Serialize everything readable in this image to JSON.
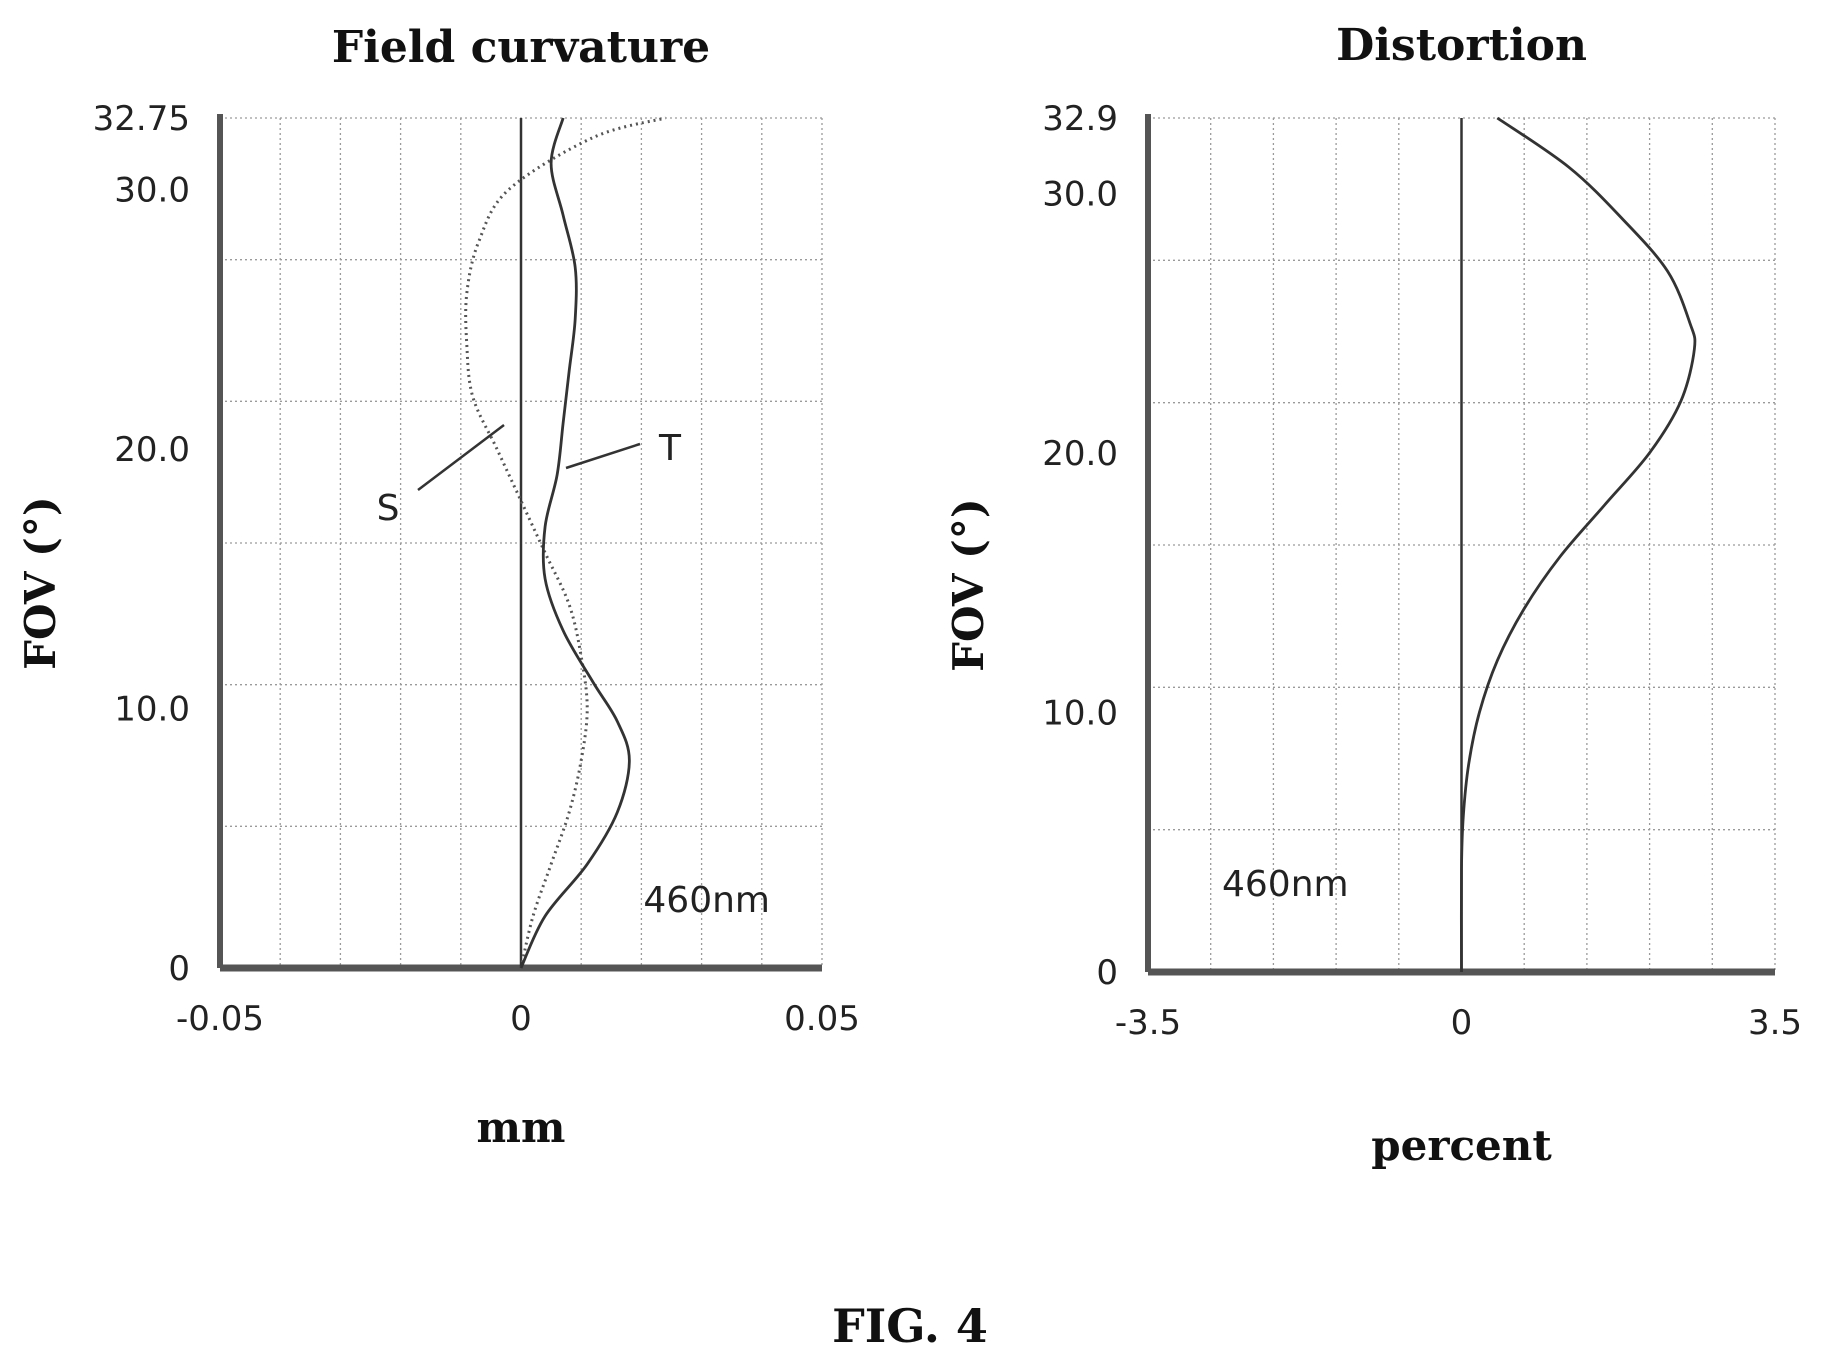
{
  "figure_caption": "FIG. 4",
  "chart_data": [
    {
      "type": "line",
      "title": "Field curvature",
      "xlabel": "mm",
      "ylabel": "FOV (°)",
      "xlim": [
        -0.05,
        0.05
      ],
      "ylim": [
        0,
        32.75
      ],
      "xticks": [
        "-0.05",
        "0",
        "0.05"
      ],
      "yticks": [
        {
          "value": 0,
          "label": "0"
        },
        {
          "value": 10,
          "label": "10.0"
        },
        {
          "value": 20,
          "label": "20.0"
        },
        {
          "value": 30,
          "label": "30.0"
        },
        {
          "value": 32.75,
          "label": "32.75"
        }
      ],
      "grid": true,
      "annotation": "460nm",
      "series": [
        {
          "name": "S",
          "style": "dotted",
          "points": [
            {
              "x": 0.0,
              "y": 0
            },
            {
              "x": 0.002,
              "y": 2
            },
            {
              "x": 0.005,
              "y": 4
            },
            {
              "x": 0.008,
              "y": 6
            },
            {
              "x": 0.01,
              "y": 8
            },
            {
              "x": 0.011,
              "y": 10
            },
            {
              "x": 0.01,
              "y": 12
            },
            {
              "x": 0.008,
              "y": 14
            },
            {
              "x": 0.004,
              "y": 16
            },
            {
              "x": 0.0,
              "y": 18
            },
            {
              "x": -0.004,
              "y": 20
            },
            {
              "x": -0.008,
              "y": 22
            },
            {
              "x": -0.009,
              "y": 24
            },
            {
              "x": -0.009,
              "y": 26
            },
            {
              "x": -0.007,
              "y": 28
            },
            {
              "x": -0.002,
              "y": 30
            },
            {
              "x": 0.012,
              "y": 32
            },
            {
              "x": 0.024,
              "y": 32.75
            }
          ]
        },
        {
          "name": "T",
          "style": "solid",
          "points": [
            {
              "x": 0.0,
              "y": 0
            },
            {
              "x": 0.004,
              "y": 2
            },
            {
              "x": 0.011,
              "y": 4
            },
            {
              "x": 0.016,
              "y": 6
            },
            {
              "x": 0.018,
              "y": 8
            },
            {
              "x": 0.016,
              "y": 9.5
            },
            {
              "x": 0.012,
              "y": 11
            },
            {
              "x": 0.007,
              "y": 13
            },
            {
              "x": 0.004,
              "y": 15
            },
            {
              "x": 0.004,
              "y": 17
            },
            {
              "x": 0.006,
              "y": 19
            },
            {
              "x": 0.007,
              "y": 21
            },
            {
              "x": 0.008,
              "y": 23
            },
            {
              "x": 0.009,
              "y": 25
            },
            {
              "x": 0.009,
              "y": 27
            },
            {
              "x": 0.007,
              "y": 29
            },
            {
              "x": 0.005,
              "y": 31
            },
            {
              "x": 0.007,
              "y": 32.75
            }
          ]
        }
      ],
      "callouts": [
        {
          "label": "S",
          "series": "S"
        },
        {
          "label": "T",
          "series": "T"
        }
      ]
    },
    {
      "type": "line",
      "title": "Distortion",
      "xlabel": "percent",
      "ylabel": "FOV (°)",
      "xlim": [
        -3.5,
        3.5
      ],
      "ylim": [
        0,
        32.9
      ],
      "xticks": [
        "-3.5",
        "0",
        "3.5"
      ],
      "yticks": [
        {
          "value": 0,
          "label": "0"
        },
        {
          "value": 10,
          "label": "10.0"
        },
        {
          "value": 20,
          "label": "20.0"
        },
        {
          "value": 30,
          "label": "30.0"
        },
        {
          "value": 32.9,
          "label": "32.9"
        }
      ],
      "grid": true,
      "annotation": "460nm",
      "series": [
        {
          "name": "",
          "style": "solid",
          "points": [
            {
              "x": 0.0,
              "y": 0
            },
            {
              "x": 0.0,
              "y": 4
            },
            {
              "x": 0.02,
              "y": 6
            },
            {
              "x": 0.08,
              "y": 8
            },
            {
              "x": 0.2,
              "y": 10
            },
            {
              "x": 0.4,
              "y": 12
            },
            {
              "x": 0.7,
              "y": 14
            },
            {
              "x": 1.1,
              "y": 16
            },
            {
              "x": 1.6,
              "y": 18
            },
            {
              "x": 2.1,
              "y": 20
            },
            {
              "x": 2.45,
              "y": 22
            },
            {
              "x": 2.6,
              "y": 24
            },
            {
              "x": 2.55,
              "y": 25
            },
            {
              "x": 2.3,
              "y": 27
            },
            {
              "x": 1.8,
              "y": 29
            },
            {
              "x": 1.2,
              "y": 31
            },
            {
              "x": 0.4,
              "y": 32.9
            }
          ]
        }
      ]
    }
  ]
}
